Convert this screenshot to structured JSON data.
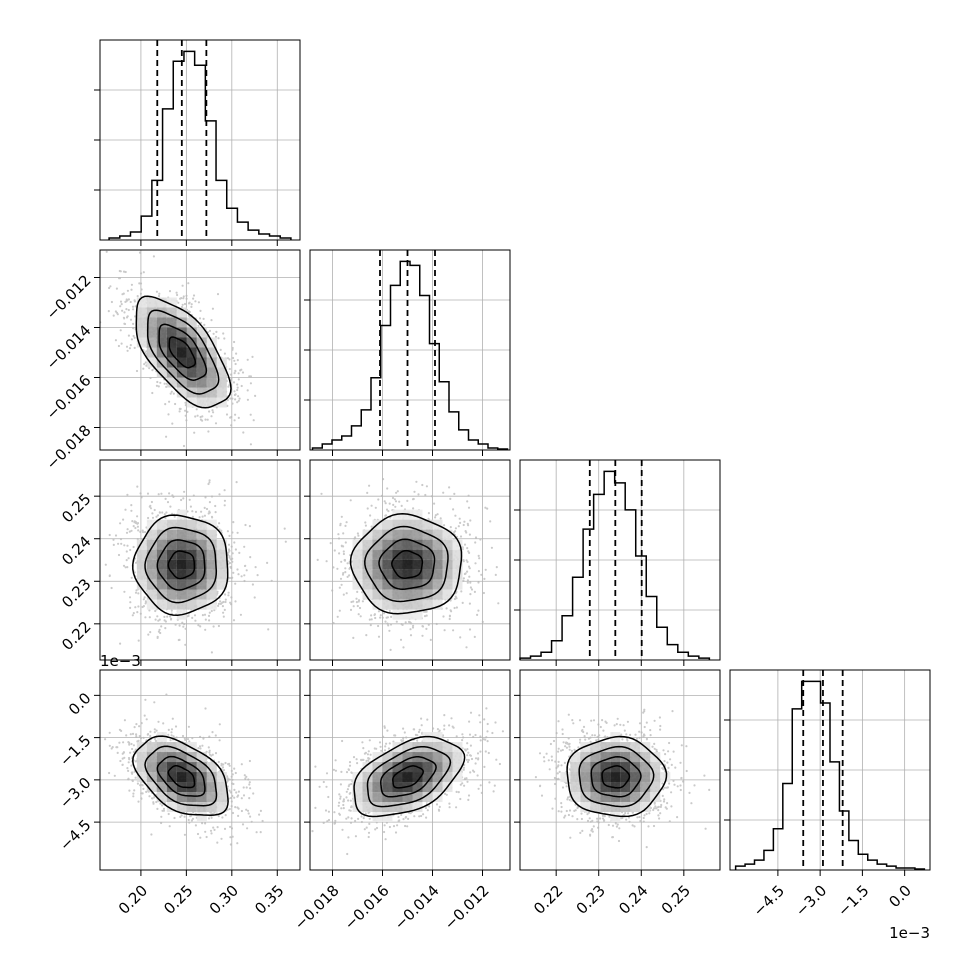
{
  "chart_data": {
    "type": "corner",
    "grid": true,
    "parameters": [
      {
        "range": [
          0.155,
          0.375
        ],
        "ticks": [
          0.2,
          0.25,
          0.3,
          0.35
        ],
        "tick_labels": [
          "0.20",
          "0.25",
          "0.30",
          "0.35"
        ],
        "offset_label": "",
        "mean": 0.245,
        "sd": 0.026,
        "quantiles": [
          0.218,
          0.245,
          0.272
        ],
        "hist_range": [
          0.165,
          0.365
        ],
        "hist_counts": [
          1,
          2,
          4,
          12,
          30,
          66,
          90,
          95,
          88,
          60,
          30,
          16,
          9,
          5,
          3,
          2,
          1
        ]
      },
      {
        "range": [
          -0.0189,
          -0.0109
        ],
        "ticks": [
          -0.018,
          -0.016,
          -0.014,
          -0.012
        ],
        "tick_labels": [
          "−0.018",
          "−0.016",
          "−0.014",
          "−0.012"
        ],
        "offset_label": "",
        "mean": -0.015,
        "sd": 0.0011,
        "quantiles": [
          -0.0161,
          -0.015,
          -0.0139
        ],
        "hist_range": [
          -0.0188,
          -0.011
        ],
        "hist_counts": [
          1,
          3,
          5,
          7,
          12,
          20,
          36,
          62,
          82,
          94,
          92,
          77,
          53,
          34,
          19,
          10,
          5,
          3,
          1,
          0.5
        ]
      },
      {
        "range": [
          0.2115,
          0.2585
        ],
        "ticks": [
          0.22,
          0.23,
          0.24,
          0.25
        ],
        "tick_labels": [
          "0.22",
          "0.23",
          "0.24",
          "0.25"
        ],
        "offset_label": "",
        "mean": 0.2339,
        "sd": 0.0058,
        "quantiles": [
          0.2279,
          0.2339,
          0.2401
        ],
        "hist_range": [
          0.2115,
          0.256
        ],
        "hist_counts": [
          1,
          2,
          4,
          10,
          23,
          43,
          68,
          86,
          98,
          92,
          78,
          54,
          33,
          17,
          8,
          4,
          2,
          1
        ]
      },
      {
        "range": [
          -0.0062,
          0.0009
        ],
        "ticks": [
          -0.0045,
          -0.003,
          -0.0015,
          0.0
        ],
        "tick_labels": [
          "−4.5",
          "−3.0",
          "−1.5",
          "0.0"
        ],
        "offset_label": "1e−3",
        "mean": -0.0029,
        "sd": 0.0007,
        "quantiles": [
          -0.0036,
          -0.0029,
          -0.0022
        ],
        "hist_range": [
          -0.006,
          0.0007
        ],
        "hist_counts": [
          2,
          3,
          5,
          10,
          21,
          44,
          82,
          96,
          96,
          85,
          55,
          30,
          15,
          8,
          5,
          3,
          2,
          1,
          1,
          0.5
        ]
      }
    ],
    "correlations": {
      "1-0": -0.62,
      "2-0": 0.0,
      "2-1": 0.0,
      "3-0": -0.45,
      "3-1": 0.45,
      "3-2": 0.0
    },
    "colors": {
      "line": "#000000",
      "scatter": "#b8b8b8",
      "density": "#000000",
      "grid": "#b0b0b0"
    }
  }
}
